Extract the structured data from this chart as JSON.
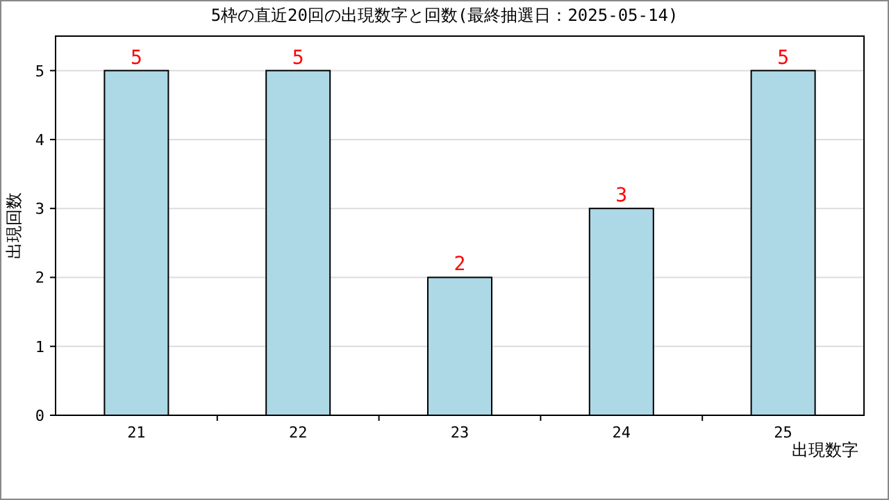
{
  "chart_data": {
    "type": "bar",
    "title": "5枠の直近20回の出現数字と回数(最終抽選日：2025-05-14)",
    "xlabel": "出現数字",
    "ylabel": "出現回数",
    "categories": [
      "21",
      "22",
      "23",
      "24",
      "25"
    ],
    "series": [
      {
        "color": "#add8e6",
        "values": [
          5,
          5,
          2,
          3,
          5
        ]
      }
    ],
    "ylim": [
      0,
      5.5
    ],
    "yticks": [
      0,
      1,
      2,
      3,
      4,
      5
    ],
    "grid": "y",
    "data_labels": true
  }
}
